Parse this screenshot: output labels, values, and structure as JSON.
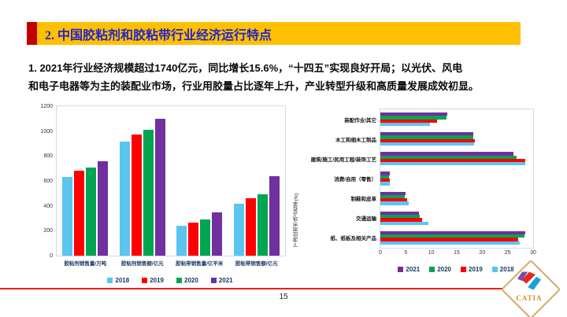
{
  "colors": {
    "title_bar_bg": "#FFC000",
    "title_text": "#2323CC",
    "accent_square": "#C00000",
    "divider_line": "#EE1C1C",
    "logo_gold": "#C9952C",
    "logo_border": "#D4A96A",
    "logo_purple": "#7A4BA8",
    "logo_red": "#E02A20",
    "logo_blue": "#1BA0DC",
    "series_2018": "#5BC5F0",
    "series_2019": "#FE0000",
    "series_2020": "#00A550",
    "series_2021": "#7030A0"
  },
  "header": {
    "title": "2. 中国胶粘剂和胶粘带行业经济运行特点"
  },
  "body": {
    "lines": [
      "1. 2021年行业经济规模超过1740亿元，同比增长15.6%，“十四五”实现良好开局；以光伏、风电",
      "和电子电器等为主的装配业市场，行业用胶量占比逐年上升，产业转型升级和高质量发展成效初显。"
    ]
  },
  "footer": {
    "page_number": "15"
  },
  "logo": {
    "text": "CATIA"
  },
  "chart_data": [
    {
      "type": "bar",
      "orientation": "vertical",
      "title": "",
      "categories": [
        "胶粘剂销售量/万吨",
        "胶粘剂销售额/亿元",
        "胶粘带销售量/亿平米",
        "胶粘带销售额/亿元"
      ],
      "series": [
        {
          "name": "2018",
          "color": "#5BC5F0",
          "values": [
            630,
            918,
            240,
            420
          ]
        },
        {
          "name": "2019",
          "color": "#FE0000",
          "values": [
            680,
            975,
            265,
            460
          ]
        },
        {
          "name": "2020",
          "color": "#00A550",
          "values": [
            706,
            1008,
            290,
            490
          ]
        },
        {
          "name": "2021",
          "color": "#7030A0",
          "values": [
            760,
            1100,
            345,
            640
          ]
        }
      ],
      "ylim": [
        0,
        1200
      ],
      "ytick_step": 200,
      "legend_position": "bottom",
      "grid": false
    },
    {
      "type": "bar",
      "orientation": "horizontal",
      "title": "",
      "ylabel": "下游应用市场占有率(%)",
      "categories": [
        "装配作业/其它",
        "木工和细木工制品",
        "建筑/施工/民用工程/装饰工艺",
        "消费/自用（零售）",
        "制鞋和皮革",
        "交通运输",
        "纸、纸板及相关产品"
      ],
      "series": [
        {
          "name": "2021",
          "color": "#7030A0",
          "values": [
            13.2,
            18.3,
            26.2,
            1.8,
            4.9,
            7.6,
            28.4
          ]
        },
        {
          "name": "2020",
          "color": "#00A550",
          "values": [
            13.0,
            18.2,
            26.8,
            1.7,
            4.8,
            7.8,
            28.3
          ]
        },
        {
          "name": "2019",
          "color": "#FE0000",
          "values": [
            11.2,
            18.5,
            28.4,
            1.9,
            5.2,
            8.2,
            27.1
          ]
        },
        {
          "name": "2018",
          "color": "#5BC5F0",
          "values": [
            9.8,
            18.4,
            28.5,
            1.8,
            5.5,
            9.4,
            27.3
          ]
        }
      ],
      "xlim": [
        0,
        30
      ],
      "xtick_step": 5,
      "legend_position": "bottom",
      "grid": false
    }
  ]
}
